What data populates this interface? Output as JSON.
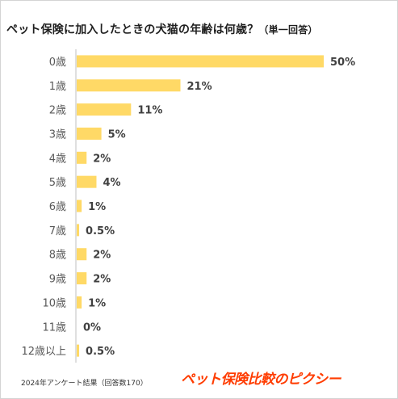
{
  "chart_data": {
    "type": "bar",
    "orientation": "horizontal",
    "title": "ペット保険に加入したときの犬猫の年齢は何歳？",
    "title_note": "（単一回答）",
    "categories": [
      "0歳",
      "1歳",
      "2歳",
      "3歳",
      "4歳",
      "5歳",
      "6歳",
      "7歳",
      "8歳",
      "9歳",
      "10歳",
      "11歳",
      "12歳以上"
    ],
    "values": [
      50,
      21,
      11,
      5,
      2,
      4,
      1,
      0.5,
      2,
      2,
      1,
      0,
      0.5
    ],
    "data_labels": [
      "50%",
      "21%",
      "11%",
      "5%",
      "2%",
      "4%",
      "1%",
      "0.5%",
      "2%",
      "2%",
      "1%",
      "0%",
      "0.5%"
    ],
    "unit": "%",
    "xlim": [
      0,
      50
    ],
    "grid": false,
    "legend": "none",
    "bar_color": "#ffd966"
  },
  "footnote": "2024年アンケート結果（回答数170）",
  "brand": "ペット保険比較のピクシー",
  "colors": {
    "brand": "#ff3c00",
    "bar": "#ffd966",
    "axis": "#bfbfbf"
  }
}
